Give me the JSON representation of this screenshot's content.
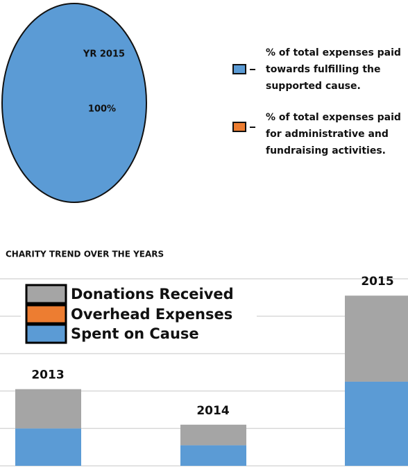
{
  "chart_data": [
    {
      "type": "pie",
      "title": "YR 2015",
      "labels": [
        "% of total expenses paid towards fulfilling the supported cause.",
        "% of total expenses paid for administrative and fundraising activities."
      ],
      "values": [
        100,
        0
      ],
      "value_labels": [
        "100%",
        null
      ],
      "colors": [
        "#5b9bd5",
        "#ed7d31"
      ]
    },
    {
      "type": "bar",
      "stacked": true,
      "title": "CHARITY TREND OVER THE YEARS",
      "categories": [
        "2013",
        "2014",
        "2015"
      ],
      "series": [
        {
          "name": "Donations Received",
          "color": "#a5a5a5",
          "values": [
            1.05,
            0.55,
            2.3
          ]
        },
        {
          "name": "Overhead Expenses",
          "color": "#ed7d31",
          "values": [
            0,
            0,
            0
          ]
        },
        {
          "name": "Spent on Cause",
          "color": "#5b9bd5",
          "values": [
            1.0,
            0.55,
            2.25
          ]
        }
      ],
      "ylim": [
        0,
        5
      ],
      "yticks": [
        0,
        1,
        2,
        3,
        4,
        5
      ],
      "grid": true
    }
  ]
}
